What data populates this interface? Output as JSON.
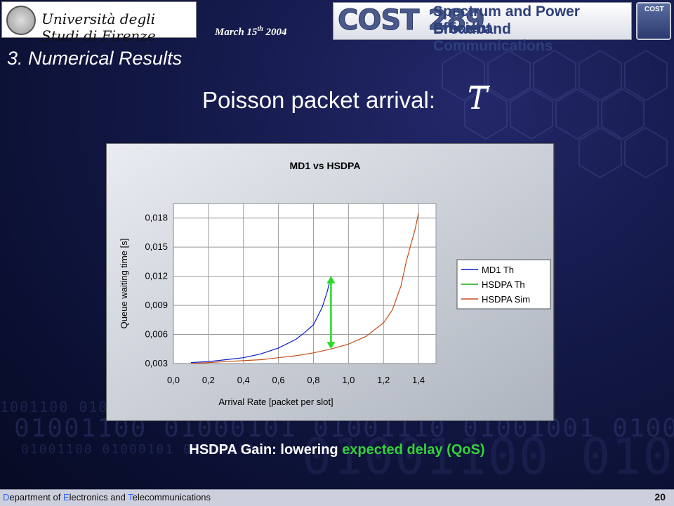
{
  "header": {
    "university": "Università degli Studi di Firenze",
    "date_prefix": "March 15",
    "date_sup": "th",
    "date_year": "2004",
    "cost_title": "COST 289",
    "cost_sub1": "Spectrum and Power Efficient",
    "cost_sub2": "Broadband Communications",
    "cost_badge": "COST"
  },
  "section_title": "3. Numerical Results",
  "slide_title": "Poisson packet arrival:",
  "symbol": "T",
  "caption": {
    "part1": "HSDPA Gain: lowering ",
    "part2": "expected delay (QoS)"
  },
  "footer": {
    "dept_d": "D",
    "dept_rest1": "epartment of ",
    "dept_e": "E",
    "dept_rest2": "lectronics and ",
    "dept_t": "T",
    "dept_rest3": "elecommunications",
    "page": "20"
  },
  "colors": {
    "md1": "#0a1ccf",
    "hsdpa_th": "#1aa51a",
    "hsdpa_sim": "#c0501a",
    "arrow": "#22dd22"
  },
  "chart_data": {
    "type": "line",
    "title": "MD1 vs HSDPA",
    "xlabel": "Arrival Rate [packet per slot]",
    "ylabel": "Queue waiting time [s]",
    "xlim": [
      0,
      1.5
    ],
    "ylim": [
      0.003,
      0.0195
    ],
    "xticks": [
      "0,0",
      "0,2",
      "0,4",
      "0,6",
      "0,8",
      "1,0",
      "1,2",
      "1,4"
    ],
    "yticks": [
      "0,003",
      "0,006",
      "0,009",
      "0,012",
      "0,015",
      "0,018"
    ],
    "xtick_values": [
      0,
      0.2,
      0.4,
      0.6,
      0.8,
      1.0,
      1.2,
      1.4
    ],
    "ytick_values": [
      0.003,
      0.006,
      0.009,
      0.012,
      0.015,
      0.018
    ],
    "legend_position": "right",
    "series": [
      {
        "name": "MD1 Th",
        "color": "#0a1ccf",
        "x": [
          0.1,
          0.2,
          0.3,
          0.4,
          0.5,
          0.6,
          0.7,
          0.75,
          0.8,
          0.85,
          0.88,
          0.9
        ],
        "y": [
          0.0031,
          0.0032,
          0.0034,
          0.0036,
          0.004,
          0.0046,
          0.0055,
          0.0062,
          0.007,
          0.0088,
          0.0105,
          0.012
        ]
      },
      {
        "name": "HSDPA Th",
        "color": "#1aa51a",
        "x": [],
        "y": []
      },
      {
        "name": "HSDPA Sim",
        "color": "#c0501a",
        "x": [
          0.1,
          0.2,
          0.3,
          0.4,
          0.5,
          0.6,
          0.7,
          0.8,
          0.9,
          1.0,
          1.1,
          1.2,
          1.25,
          1.3,
          1.33,
          1.36,
          1.38,
          1.4
        ],
        "y": [
          0.003,
          0.0031,
          0.0032,
          0.0033,
          0.0034,
          0.0036,
          0.0038,
          0.0041,
          0.0045,
          0.005,
          0.0058,
          0.0072,
          0.0085,
          0.011,
          0.0135,
          0.0155,
          0.0168,
          0.0185
        ]
      }
    ],
    "annotation": {
      "type": "double-arrow",
      "x": 0.9,
      "y_from": 0.0045,
      "y_to": 0.012
    }
  }
}
